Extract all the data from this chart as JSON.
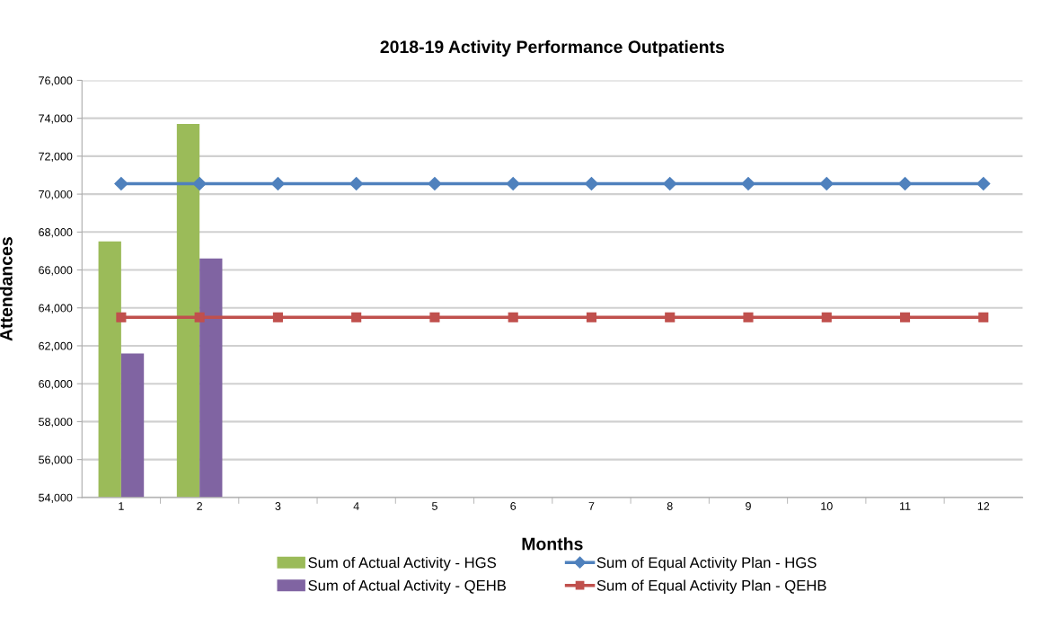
{
  "chart_data": {
    "type": "bar",
    "title": "2018-19 Activity Performance Outpatients",
    "xlabel": "Months",
    "ylabel": "Attendances",
    "categories": [
      "1",
      "2",
      "3",
      "4",
      "5",
      "6",
      "7",
      "8",
      "9",
      "10",
      "11",
      "12"
    ],
    "series": [
      {
        "name": "Sum of Actual Activity - HGS",
        "color": "#9bbb59",
        "values": [
          67500,
          73700,
          null,
          null,
          null,
          null,
          null,
          null,
          null,
          null,
          null,
          null
        ]
      },
      {
        "name": "Sum of Actual Activity - QEHB",
        "color": "#8064a2",
        "values": [
          61600,
          66600,
          null,
          null,
          null,
          null,
          null,
          null,
          null,
          null,
          null,
          null
        ]
      },
      {
        "name": "Sum of Equal Activity Plan - HGS",
        "type": "line",
        "marker": "diamond",
        "color": "#4f81bd",
        "values": [
          70550,
          70550,
          70550,
          70550,
          70550,
          70550,
          70550,
          70550,
          70550,
          70550,
          70550,
          70550
        ]
      },
      {
        "name": "Sum of Equal Activity Plan - QEHB",
        "type": "line",
        "marker": "square",
        "color": "#c0504d",
        "values": [
          63500,
          63500,
          63500,
          63500,
          63500,
          63500,
          63500,
          63500,
          63500,
          63500,
          63500,
          63500
        ]
      }
    ],
    "ylim": [
      54000,
      76000
    ],
    "yticks": [
      {
        "value": 54000,
        "label": "54,000"
      },
      {
        "value": 56000,
        "label": "56,000"
      },
      {
        "value": 58000,
        "label": "58,000"
      },
      {
        "value": 60000,
        "label": "60,000"
      },
      {
        "value": 62000,
        "label": "62,000"
      },
      {
        "value": 64000,
        "label": "64,000"
      },
      {
        "value": 66000,
        "label": "66,000"
      },
      {
        "value": 68000,
        "label": "68,000"
      },
      {
        "value": 70000,
        "label": "70,000"
      },
      {
        "value": 72000,
        "label": "72,000"
      },
      {
        "value": 74000,
        "label": "74,000"
      },
      {
        "value": 76000,
        "label": "76,000"
      }
    ],
    "grid": "y",
    "legend": "bottom"
  }
}
